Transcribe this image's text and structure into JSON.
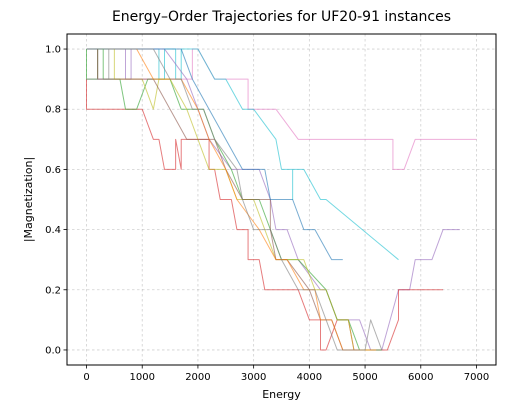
{
  "chart_data": {
    "type": "line",
    "title": "Energy–Order Trajectories for UF20-91 instances",
    "xlabel": "Energy",
    "ylabel": "|Magnetization|",
    "xlim": [
      -350,
      7350
    ],
    "ylim": [
      -0.05,
      1.05
    ],
    "x_ticks": [
      0,
      1000,
      2000,
      3000,
      4000,
      5000,
      6000,
      7000
    ],
    "y_ticks": [
      0.0,
      0.2,
      0.4,
      0.6,
      0.8,
      1.0
    ],
    "x_tick_labels": [
      "0",
      "1000",
      "2000",
      "3000",
      "4000",
      "5000",
      "6000",
      "7000"
    ],
    "y_tick_labels": [
      "0.0",
      "0.2",
      "0.4",
      "0.6",
      "0.8",
      "1.0"
    ],
    "grid": true,
    "line_alpha": 0.6,
    "series": [
      {
        "color": "#e377c2",
        "points": [
          [
            0,
            1.0
          ],
          [
            200,
            1.0
          ],
          [
            200,
            0.9
          ],
          [
            1900,
            0.9
          ],
          [
            1900,
            1.0
          ],
          [
            2000,
            1.0
          ],
          [
            2300,
            0.9
          ],
          [
            2900,
            0.9
          ],
          [
            2900,
            0.8
          ],
          [
            3400,
            0.8
          ],
          [
            3800,
            0.7
          ],
          [
            5500,
            0.7
          ],
          [
            5500,
            0.6
          ],
          [
            5700,
            0.6
          ],
          [
            5900,
            0.7
          ],
          [
            7000,
            0.7
          ]
        ]
      },
      {
        "color": "#17becf",
        "points": [
          [
            0,
            1.0
          ],
          [
            1300,
            1.0
          ],
          [
            1300,
            0.9
          ],
          [
            1400,
            0.9
          ],
          [
            1400,
            1.0
          ],
          [
            1600,
            1.0
          ],
          [
            1600,
            0.9
          ],
          [
            1700,
            0.9
          ],
          [
            1700,
            1.0
          ],
          [
            2000,
            1.0
          ],
          [
            2300,
            0.9
          ],
          [
            2500,
            0.9
          ],
          [
            2800,
            0.8
          ],
          [
            3000,
            0.8
          ],
          [
            3400,
            0.7
          ],
          [
            3500,
            0.6
          ],
          [
            3700,
            0.6
          ],
          [
            3700,
            0.5
          ],
          [
            3700,
            0.6
          ],
          [
            3900,
            0.6
          ],
          [
            4200,
            0.5
          ],
          [
            4300,
            0.5
          ],
          [
            5600,
            0.3
          ]
        ]
      },
      {
        "color": "#9467bd",
        "points": [
          [
            0,
            1.0
          ],
          [
            700,
            1.0
          ],
          [
            700,
            0.9
          ],
          [
            800,
            0.9
          ],
          [
            800,
            1.0
          ],
          [
            1400,
            1.0
          ],
          [
            1800,
            0.9
          ],
          [
            2000,
            0.8
          ],
          [
            2200,
            0.7
          ],
          [
            2600,
            0.6
          ],
          [
            3100,
            0.6
          ],
          [
            3300,
            0.5
          ],
          [
            3400,
            0.4
          ],
          [
            3600,
            0.4
          ],
          [
            3800,
            0.3
          ],
          [
            4200,
            0.2
          ],
          [
            4300,
            0.2
          ],
          [
            4500,
            0.1
          ],
          [
            4900,
            0.1
          ],
          [
            5100,
            0.0
          ],
          [
            5300,
            0.0
          ],
          [
            5600,
            0.2
          ],
          [
            5800,
            0.2
          ],
          [
            5900,
            0.3
          ],
          [
            6200,
            0.3
          ],
          [
            6400,
            0.4
          ],
          [
            6700,
            0.4
          ]
        ]
      },
      {
        "color": "#d62728",
        "points": [
          [
            0,
            0.9
          ],
          [
            0,
            0.8
          ],
          [
            1000,
            0.8
          ],
          [
            1200,
            0.7
          ],
          [
            1300,
            0.7
          ],
          [
            1400,
            0.6
          ],
          [
            1600,
            0.6
          ],
          [
            1600,
            0.7
          ],
          [
            1700,
            0.6
          ],
          [
            1700,
            0.7
          ],
          [
            2200,
            0.7
          ],
          [
            2200,
            0.6
          ],
          [
            2300,
            0.6
          ],
          [
            2400,
            0.5
          ],
          [
            2600,
            0.5
          ],
          [
            2700,
            0.4
          ],
          [
            2900,
            0.4
          ],
          [
            2900,
            0.3
          ],
          [
            3100,
            0.3
          ],
          [
            3200,
            0.2
          ],
          [
            3600,
            0.2
          ],
          [
            3800,
            0.2
          ],
          [
            4000,
            0.1
          ],
          [
            4200,
            0.1
          ],
          [
            4200,
            0.0
          ],
          [
            4300,
            0.0
          ],
          [
            4500,
            0.1
          ],
          [
            4700,
            0.1
          ],
          [
            4800,
            0.0
          ],
          [
            5400,
            0.0
          ],
          [
            5600,
            0.1
          ],
          [
            5600,
            0.2
          ],
          [
            6400,
            0.2
          ]
        ]
      },
      {
        "color": "#2ca02c",
        "points": [
          [
            0,
            1.0
          ],
          [
            0,
            0.9
          ],
          [
            200,
            0.9
          ],
          [
            200,
            1.0
          ],
          [
            300,
            1.0
          ],
          [
            300,
            0.9
          ],
          [
            600,
            0.9
          ],
          [
            700,
            0.8
          ],
          [
            900,
            0.8
          ],
          [
            1100,
            0.9
          ],
          [
            1500,
            0.9
          ],
          [
            1700,
            0.8
          ],
          [
            2100,
            0.8
          ],
          [
            2300,
            0.7
          ],
          [
            2600,
            0.6
          ],
          [
            2800,
            0.5
          ],
          [
            3100,
            0.5
          ],
          [
            3300,
            0.4
          ],
          [
            3500,
            0.3
          ],
          [
            3800,
            0.3
          ],
          [
            4300,
            0.2
          ],
          [
            4500,
            0.1
          ],
          [
            4700,
            0.1
          ],
          [
            4900,
            0.0
          ],
          [
            5300,
            0.0
          ]
        ]
      },
      {
        "color": "#bcbd22",
        "points": [
          [
            0,
            1.0
          ],
          [
            500,
            1.0
          ],
          [
            500,
            0.9
          ],
          [
            700,
            0.9
          ],
          [
            900,
            0.9
          ],
          [
            1000,
            0.9
          ],
          [
            1200,
            0.8
          ],
          [
            1300,
            0.9
          ],
          [
            1500,
            0.9
          ],
          [
            1800,
            0.8
          ],
          [
            2000,
            0.7
          ],
          [
            2200,
            0.6
          ],
          [
            2500,
            0.6
          ],
          [
            2700,
            0.5
          ],
          [
            3000,
            0.5
          ],
          [
            3200,
            0.4
          ],
          [
            3400,
            0.3
          ],
          [
            3900,
            0.3
          ],
          [
            4100,
            0.2
          ],
          [
            4300,
            0.2
          ],
          [
            4500,
            0.1
          ],
          [
            4700,
            0.1
          ],
          [
            4800,
            0.0
          ],
          [
            5100,
            0.0
          ]
        ]
      },
      {
        "color": "#8c564b",
        "points": [
          [
            0,
            1.0
          ],
          [
            200,
            1.0
          ],
          [
            200,
            0.9
          ],
          [
            1000,
            0.9
          ],
          [
            1200,
            0.9
          ],
          [
            1500,
            0.8
          ],
          [
            1800,
            0.7
          ],
          [
            2300,
            0.7
          ],
          [
            2500,
            0.6
          ],
          [
            2800,
            0.5
          ],
          [
            3300,
            0.5
          ],
          [
            3300,
            0.4
          ],
          [
            3400,
            0.3
          ],
          [
            3500,
            0.3
          ],
          [
            3600,
            0.3
          ],
          [
            4000,
            0.2
          ],
          [
            4200,
            0.1
          ],
          [
            4400,
            0.1
          ],
          [
            4600,
            0.0
          ],
          [
            4900,
            0.0
          ]
        ]
      },
      {
        "color": "#ff7f0e",
        "points": [
          [
            0,
            1.0
          ],
          [
            900,
            1.0
          ],
          [
            1200,
            0.9
          ],
          [
            1700,
            0.9
          ],
          [
            2000,
            0.8
          ],
          [
            2200,
            0.7
          ],
          [
            2500,
            0.6
          ],
          [
            2700,
            0.5
          ],
          [
            3100,
            0.4
          ],
          [
            3400,
            0.3
          ],
          [
            3600,
            0.3
          ],
          [
            3900,
            0.2
          ],
          [
            4100,
            0.2
          ],
          [
            4200,
            0.1
          ],
          [
            4400,
            0.1
          ],
          [
            4600,
            0.0
          ],
          [
            5200,
            0.0
          ]
        ]
      },
      {
        "color": "#1f77b4",
        "points": [
          [
            0,
            1.0
          ],
          [
            1500,
            1.0
          ],
          [
            1700,
            1.0
          ],
          [
            1900,
            0.9
          ],
          [
            2200,
            0.8
          ],
          [
            2500,
            0.7
          ],
          [
            2800,
            0.6
          ],
          [
            3200,
            0.6
          ],
          [
            3300,
            0.5
          ],
          [
            3700,
            0.5
          ],
          [
            3900,
            0.4
          ],
          [
            4100,
            0.4
          ],
          [
            4400,
            0.3
          ],
          [
            4600,
            0.3
          ]
        ]
      },
      {
        "color": "#7f7f7f",
        "points": [
          [
            0,
            0.9
          ],
          [
            400,
            0.9
          ],
          [
            400,
            1.0
          ],
          [
            1200,
            1.0
          ],
          [
            1500,
            0.9
          ],
          [
            1700,
            0.9
          ],
          [
            1900,
            0.8
          ],
          [
            2100,
            0.8
          ],
          [
            2300,
            0.7
          ],
          [
            2700,
            0.6
          ],
          [
            2800,
            0.5
          ],
          [
            3000,
            0.4
          ],
          [
            3300,
            0.4
          ],
          [
            3500,
            0.3
          ],
          [
            3800,
            0.2
          ],
          [
            4100,
            0.2
          ],
          [
            4300,
            0.1
          ],
          [
            4500,
            0.0
          ],
          [
            5000,
            0.0
          ],
          [
            5100,
            0.1
          ],
          [
            5300,
            0.0
          ]
        ]
      }
    ]
  }
}
